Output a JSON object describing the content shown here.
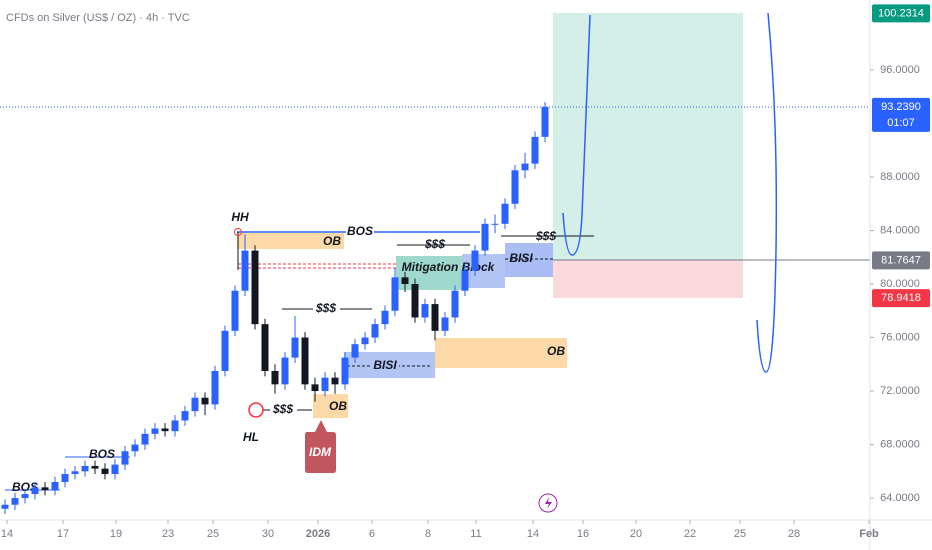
{
  "chart_data": {
    "type": "candlestick",
    "title": "CFDs on Silver (US$ / OZ) · 4h · TVC",
    "up_color": "#2962ff",
    "down_color": "#131722",
    "xlim": [
      0,
      87
    ],
    "ylim": [
      62.36,
      101.23
    ],
    "grid": false,
    "xticks": [
      {
        "value": 0.7,
        "label": "14"
      },
      {
        "value": 6.3,
        "label": "17"
      },
      {
        "value": 11.6,
        "label": "19"
      },
      {
        "value": 16.8,
        "label": "23"
      },
      {
        "value": 21.3,
        "label": "25"
      },
      {
        "value": 26.8,
        "label": "30"
      },
      {
        "value": 31.8,
        "label": "2026"
      },
      {
        "value": 37.2,
        "label": "6"
      },
      {
        "value": 42.8,
        "label": "8"
      },
      {
        "value": 47.6,
        "label": "11"
      },
      {
        "value": 53.3,
        "label": "14"
      },
      {
        "value": 58.3,
        "label": "16"
      },
      {
        "value": 63.6,
        "label": "20"
      },
      {
        "value": 69,
        "label": "22"
      },
      {
        "value": 74,
        "label": "25"
      },
      {
        "value": 79.4,
        "label": "28"
      },
      {
        "value": 86.9,
        "label": "Feb"
      }
    ],
    "yticks": [
      {
        "value": 96,
        "label": "96.0000"
      },
      {
        "value": 88,
        "label": "88.0000"
      },
      {
        "value": 84,
        "label": "84.0000"
      },
      {
        "value": 80,
        "label": "80.0000"
      },
      {
        "value": 76,
        "label": "76.0000"
      },
      {
        "value": 72,
        "label": "72.0000"
      },
      {
        "value": 68,
        "label": "68.0000"
      },
      {
        "value": 64,
        "label": "64.0000"
      }
    ],
    "price_labels": [
      {
        "value": 100.2314,
        "label": "100.2314",
        "color": "#089981"
      },
      {
        "value": 93.239,
        "label": "93.2390",
        "sub": "01:07",
        "color": "#2962ff"
      },
      {
        "value": 81.7647,
        "label": "81.7647",
        "color": "#787b86"
      },
      {
        "value": 78.9418,
        "label": "78.9418",
        "color": "#f23645"
      }
    ],
    "candles": [
      [
        63.2,
        63.9,
        62.8,
        63.5
      ],
      [
        63.5,
        64.4,
        63.1,
        64.0
      ],
      [
        64.0,
        64.7,
        63.6,
        64.3
      ],
      [
        64.3,
        65.2,
        63.9,
        64.8
      ],
      [
        64.8,
        65.2,
        64.2,
        64.6
      ],
      [
        64.6,
        65.6,
        64.2,
        65.2
      ],
      [
        65.2,
        66.2,
        64.8,
        65.8
      ],
      [
        65.8,
        66.4,
        65.4,
        66.0
      ],
      [
        66.0,
        66.8,
        65.6,
        66.4
      ],
      [
        66.4,
        66.8,
        65.8,
        66.2
      ],
      [
        66.2,
        66.6,
        65.4,
        65.8
      ],
      [
        65.8,
        66.9,
        65.4,
        66.5
      ],
      [
        66.5,
        67.9,
        66.1,
        67.5
      ],
      [
        67.5,
        68.4,
        67.1,
        68.0
      ],
      [
        68.0,
        69.2,
        67.6,
        68.8
      ],
      [
        68.8,
        69.6,
        68.4,
        69.2
      ],
      [
        69.2,
        69.6,
        68.6,
        69.0
      ],
      [
        69.0,
        70.2,
        68.6,
        69.8
      ],
      [
        69.8,
        70.9,
        69.4,
        70.5
      ],
      [
        70.5,
        71.9,
        70.1,
        71.5
      ],
      [
        71.5,
        71.9,
        70.2,
        71.0
      ],
      [
        71.0,
        73.9,
        70.6,
        73.5
      ],
      [
        73.5,
        76.9,
        73.1,
        76.5
      ],
      [
        76.5,
        79.9,
        76.1,
        79.5
      ],
      [
        79.5,
        83.7,
        79.1,
        82.5
      ],
      [
        82.5,
        82.9,
        76.6,
        77.0
      ],
      [
        77.0,
        77.4,
        73.1,
        73.5
      ],
      [
        73.5,
        74.0,
        71.8,
        72.5
      ],
      [
        72.5,
        74.9,
        72.1,
        74.5
      ],
      [
        74.5,
        77.6,
        74.1,
        76.0
      ],
      [
        76.0,
        76.4,
        72.1,
        72.5
      ],
      [
        72.5,
        73.0,
        71.2,
        72.0
      ],
      [
        72.0,
        73.4,
        71.6,
        73.0
      ],
      [
        73.0,
        73.4,
        71.8,
        72.5
      ],
      [
        72.5,
        74.9,
        72.1,
        74.5
      ],
      [
        74.5,
        75.9,
        74.1,
        75.5
      ],
      [
        75.5,
        76.4,
        75.1,
        76.0
      ],
      [
        76.0,
        77.4,
        75.6,
        77.0
      ],
      [
        77.0,
        78.4,
        76.6,
        78.0
      ],
      [
        78.0,
        81.2,
        77.6,
        80.5
      ],
      [
        80.5,
        80.9,
        79.4,
        80.0
      ],
      [
        80.0,
        80.4,
        77.1,
        77.5
      ],
      [
        77.5,
        78.9,
        77.1,
        78.5
      ],
      [
        78.5,
        78.9,
        75.8,
        76.5
      ],
      [
        76.5,
        77.9,
        76.1,
        77.5
      ],
      [
        77.5,
        79.9,
        77.1,
        79.5
      ],
      [
        79.5,
        81.4,
        79.1,
        81.0
      ],
      [
        81.0,
        82.9,
        80.6,
        82.5
      ],
      [
        82.5,
        84.9,
        82.1,
        84.5
      ],
      [
        84.5,
        85.2,
        83.8,
        84.5
      ],
      [
        84.5,
        86.4,
        84.1,
        86.0
      ],
      [
        86.0,
        88.9,
        85.6,
        88.5
      ],
      [
        88.5,
        89.8,
        87.9,
        89.0
      ],
      [
        89.0,
        91.4,
        88.6,
        91.0
      ],
      [
        91.0,
        93.6,
        90.6,
        93.239
      ]
    ],
    "annotations": [
      "HH",
      "HL",
      "BOS",
      "BOS",
      "BOS",
      "OB",
      "OB",
      "OB",
      "$$$",
      "$$$",
      "$$$",
      "$$$",
      "BISI",
      "BISI",
      "Mitigation Block",
      "IDM"
    ]
  }
}
